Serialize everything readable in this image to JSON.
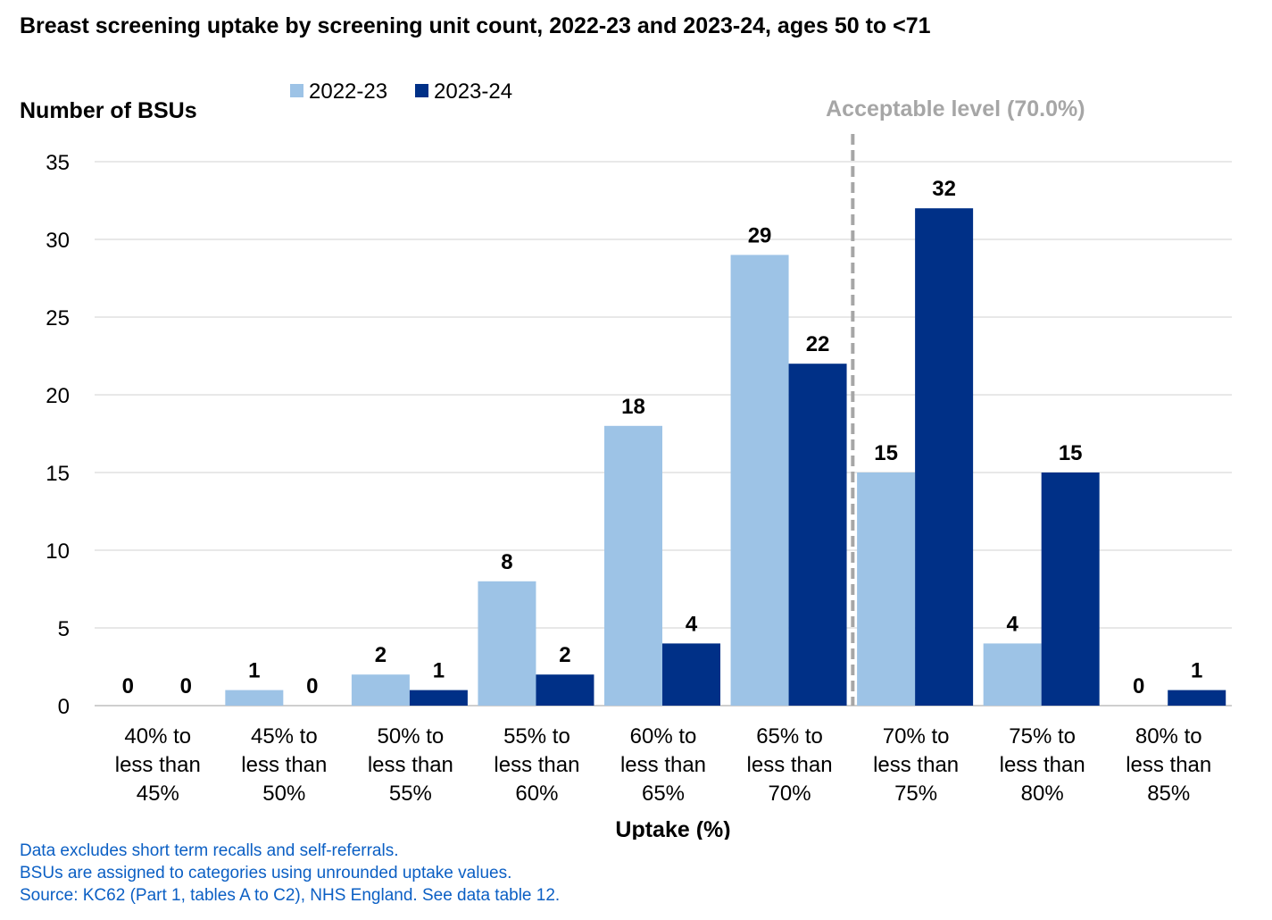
{
  "chart_data": {
    "type": "bar",
    "title": "Breast screening uptake by screening unit count, 2022-23 and 2023-24, ages 50 to <71",
    "ylabel": "Number of BSUs",
    "xlabel": "Uptake (%)",
    "ylim": [
      0,
      35
    ],
    "yticks": [
      0,
      5,
      10,
      15,
      20,
      25,
      30,
      35
    ],
    "grid": true,
    "legend_position": "top-left",
    "categories": [
      [
        "40% to",
        "less than",
        "45%"
      ],
      [
        "45% to",
        "less than",
        "50%"
      ],
      [
        "50% to",
        "less than",
        "55%"
      ],
      [
        "55% to",
        "less than",
        "60%"
      ],
      [
        "60% to",
        "less than",
        "65%"
      ],
      [
        "65% to",
        "less than",
        "70%"
      ],
      [
        "70% to",
        "less than",
        "75%"
      ],
      [
        "75% to",
        "less than",
        "80%"
      ],
      [
        "80% to",
        "less than",
        "85%"
      ]
    ],
    "series": [
      {
        "name": "2022-23",
        "color": "#9dc3e6",
        "values": [
          0,
          1,
          2,
          8,
          18,
          29,
          15,
          4,
          0
        ]
      },
      {
        "name": "2023-24",
        "color": "#003087",
        "values": [
          0,
          0,
          1,
          2,
          4,
          22,
          32,
          15,
          1
        ]
      }
    ],
    "reference_line": {
      "label": "Acceptable level (70.0%)",
      "position_between_categories": [
        5,
        6
      ],
      "color": "#a6a6a6",
      "style": "dashed"
    }
  },
  "notes": [
    "Data excludes short term recalls and self-referrals.",
    "BSUs are assigned to categories using unrounded uptake values.",
    "Source: KC62 (Part 1, tables A to C2), NHS England. See data table 12."
  ]
}
